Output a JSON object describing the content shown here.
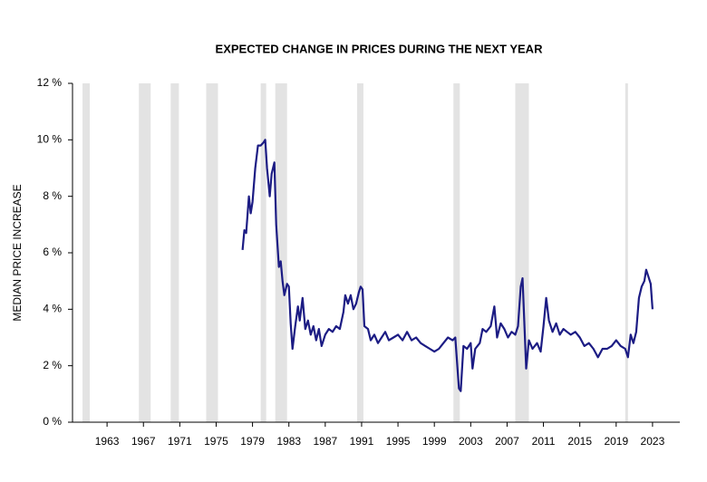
{
  "chart_data": {
    "type": "line",
    "title": "EXPECTED CHANGE IN PRICES DURING THE NEXT YEAR",
    "y_label": "MEDIAN PRICE INCREASE",
    "color": "#1c1c84",
    "shade_color": "#e3e3e3",
    "shaded_periods": [
      [
        1960.3,
        1961.1
      ],
      [
        1966.5,
        1967.8
      ],
      [
        1970.0,
        1970.9
      ],
      [
        1973.9,
        1975.2
      ],
      [
        1979.9,
        1980.5
      ],
      [
        1981.5,
        1982.8
      ],
      [
        1990.5,
        1991.2
      ],
      [
        2001.1,
        2001.8
      ],
      [
        2007.9,
        2009.4
      ],
      [
        2020.0,
        2020.3
      ]
    ],
    "xlim": [
      1959.2,
      2026
    ],
    "xticks": [
      1963,
      1967,
      1971,
      1975,
      1979,
      1983,
      1987,
      1991,
      1995,
      1999,
      2003,
      2007,
      2011,
      2015,
      2019,
      2023
    ],
    "ylim": [
      0,
      12
    ],
    "yticks": [
      {
        "value": 0,
        "label": "0 %"
      },
      {
        "value": 2,
        "label": "2 %"
      },
      {
        "value": 4,
        "label": "4 %"
      },
      {
        "value": 6,
        "label": "6 %"
      },
      {
        "value": 8,
        "label": "8 %"
      },
      {
        "value": 10,
        "label": "10 %"
      },
      {
        "value": 12,
        "label": "12 %"
      }
    ],
    "x": [
      1977.9,
      1978.1,
      1978.3,
      1978.6,
      1978.8,
      1979.0,
      1979.3,
      1979.6,
      1979.9,
      1980.2,
      1980.4,
      1980.6,
      1980.9,
      1981.1,
      1981.4,
      1981.6,
      1981.9,
      1982.1,
      1982.3,
      1982.5,
      1982.8,
      1983.0,
      1983.2,
      1983.4,
      1983.7,
      1984.0,
      1984.2,
      1984.5,
      1984.8,
      1985.1,
      1985.4,
      1985.7,
      1986.0,
      1986.3,
      1986.6,
      1987.0,
      1987.4,
      1987.8,
      1988.2,
      1988.6,
      1989.0,
      1989.2,
      1989.5,
      1989.8,
      1990.1,
      1990.4,
      1990.7,
      1990.9,
      1991.1,
      1991.3,
      1991.7,
      1992.0,
      1992.4,
      1992.8,
      1993.2,
      1993.6,
      1994.0,
      1994.5,
      1995.0,
      1995.5,
      1996.0,
      1996.5,
      1997.0,
      1997.5,
      1998.0,
      1998.5,
      1999.0,
      1999.5,
      2000.0,
      2000.5,
      2001.0,
      2001.3,
      2001.5,
      2001.7,
      2001.9,
      2002.2,
      2002.6,
      2003.0,
      2003.2,
      2003.5,
      2004.0,
      2004.3,
      2004.7,
      2005.2,
      2005.6,
      2005.9,
      2006.3,
      2006.7,
      2007.1,
      2007.5,
      2007.9,
      2008.2,
      2008.5,
      2008.7,
      2008.9,
      2009.1,
      2009.4,
      2009.8,
      2010.3,
      2010.7,
      2011.0,
      2011.3,
      2011.6,
      2012.0,
      2012.4,
      2012.8,
      2013.2,
      2013.6,
      2014.0,
      2014.5,
      2015.0,
      2015.5,
      2016.0,
      2016.5,
      2017.0,
      2017.5,
      2018.0,
      2018.5,
      2019.0,
      2019.5,
      2020.0,
      2020.3,
      2020.6,
      2020.9,
      2021.2,
      2021.5,
      2021.8,
      2022.1,
      2022.3,
      2022.6,
      2022.8,
      2023.0
    ],
    "values": [
      6.1,
      6.8,
      6.7,
      8.0,
      7.4,
      7.8,
      9.0,
      9.8,
      9.8,
      9.9,
      10.0,
      9.0,
      8.0,
      8.8,
      9.2,
      7.0,
      5.5,
      5.7,
      5.0,
      4.5,
      4.9,
      4.8,
      3.5,
      2.6,
      3.4,
      4.1,
      3.6,
      4.4,
      3.3,
      3.6,
      3.1,
      3.4,
      2.9,
      3.3,
      2.7,
      3.1,
      3.3,
      3.2,
      3.4,
      3.3,
      3.9,
      4.5,
      4.2,
      4.5,
      4.0,
      4.2,
      4.6,
      4.8,
      4.7,
      3.4,
      3.3,
      2.9,
      3.1,
      2.8,
      3.0,
      3.2,
      2.9,
      3.0,
      3.1,
      2.9,
      3.2,
      2.9,
      3.0,
      2.8,
      2.7,
      2.6,
      2.5,
      2.6,
      2.8,
      3.0,
      2.9,
      3.0,
      2.1,
      1.2,
      1.1,
      2.7,
      2.6,
      2.8,
      1.9,
      2.6,
      2.8,
      3.3,
      3.2,
      3.4,
      4.1,
      3.0,
      3.5,
      3.3,
      3.0,
      3.2,
      3.1,
      3.4,
      4.8,
      5.1,
      3.5,
      1.9,
      2.9,
      2.6,
      2.8,
      2.5,
      3.4,
      4.4,
      3.6,
      3.2,
      3.5,
      3.1,
      3.3,
      3.2,
      3.1,
      3.2,
      3.0,
      2.7,
      2.8,
      2.6,
      2.3,
      2.6,
      2.6,
      2.7,
      2.9,
      2.7,
      2.6,
      2.3,
      3.1,
      2.8,
      3.2,
      4.4,
      4.8,
      5.0,
      5.4,
      5.1,
      4.9,
      4.0
    ]
  }
}
